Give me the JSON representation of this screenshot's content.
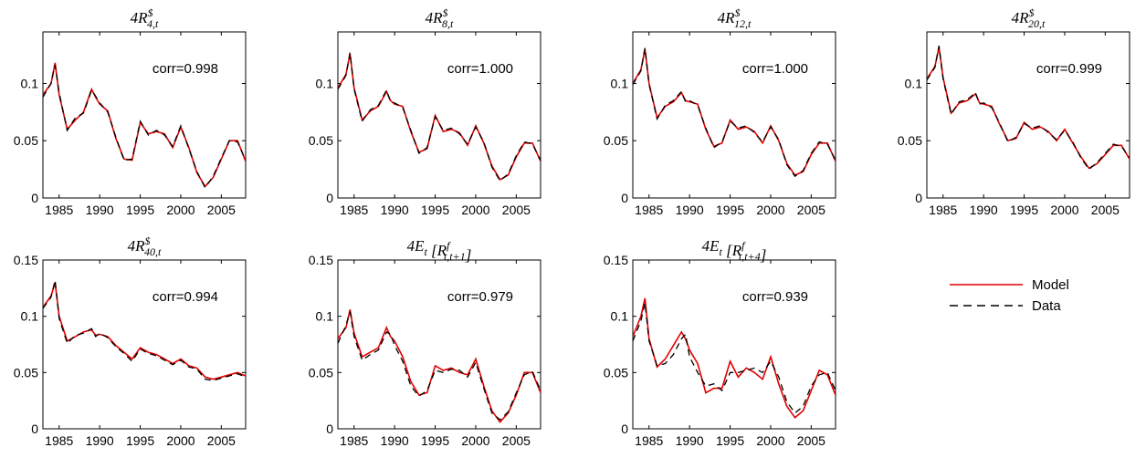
{
  "legend": {
    "items": [
      {
        "label": "Model",
        "color": "#e00000",
        "dash": "solid"
      },
      {
        "label": "Data",
        "color": "#000000",
        "dash": "dashed"
      }
    ],
    "placement": "right, second row"
  },
  "colors": {
    "model": "#e00000",
    "data": "#000000"
  },
  "chart_data": [
    {
      "type": "line",
      "title": "4R^$_{4,t}",
      "annotation": "corr=0.998",
      "xlim": [
        1983,
        2008
      ],
      "ylim": [
        0,
        0.145
      ],
      "xticks": [
        1985,
        1990,
        1995,
        2000,
        2005
      ],
      "xtick_labels": [
        "1985",
        "1990",
        "1995",
        "2000",
        "2005"
      ],
      "yticks": [
        0,
        0.05,
        0.1
      ],
      "ytick_labels": [
        "0",
        "0.05",
        "0.1"
      ],
      "x": [
        1983,
        1984,
        1984.5,
        1985,
        1986,
        1987,
        1988,
        1989,
        1989.5,
        1990,
        1991,
        1992,
        1993,
        1994,
        1995,
        1996,
        1997,
        1998,
        1999,
        2000,
        2001,
        2002,
        2003,
        2004,
        2005,
        2006,
        2007,
        2008
      ],
      "series": [
        {
          "name": "Model",
          "values": [
            0.09,
            0.1,
            0.118,
            0.09,
            0.06,
            0.068,
            0.075,
            0.095,
            0.088,
            0.082,
            0.076,
            0.052,
            0.034,
            0.033,
            0.066,
            0.056,
            0.058,
            0.056,
            0.044,
            0.062,
            0.044,
            0.022,
            0.01,
            0.018,
            0.034,
            0.05,
            0.05,
            0.032
          ]
        },
        {
          "name": "Data",
          "values": [
            0.088,
            0.1,
            0.116,
            0.092,
            0.059,
            0.07,
            0.074,
            0.094,
            0.089,
            0.083,
            0.075,
            0.053,
            0.033,
            0.034,
            0.067,
            0.055,
            0.059,
            0.055,
            0.045,
            0.063,
            0.043,
            0.023,
            0.009,
            0.019,
            0.035,
            0.05,
            0.049,
            0.033
          ]
        }
      ]
    },
    {
      "type": "line",
      "title": "4R^$_{8,t}",
      "annotation": "corr=1.000",
      "xlim": [
        1983,
        2008
      ],
      "ylim": [
        0,
        0.145
      ],
      "xticks": [
        1985,
        1990,
        1995,
        2000,
        2005
      ],
      "xtick_labels": [
        "1985",
        "1990",
        "1995",
        "2000",
        "2005"
      ],
      "yticks": [
        0,
        0.05,
        0.1
      ],
      "ytick_labels": [
        "0",
        "0.05",
        "0.1"
      ],
      "x": [
        1983,
        1984,
        1984.5,
        1985,
        1986,
        1987,
        1988,
        1989,
        1989.5,
        1990,
        1991,
        1992,
        1993,
        1994,
        1995,
        1996,
        1997,
        1998,
        1999,
        2000,
        2001,
        2002,
        2003,
        2004,
        2005,
        2006,
        2007,
        2008
      ],
      "series": [
        {
          "name": "Model",
          "values": [
            0.096,
            0.108,
            0.126,
            0.096,
            0.068,
            0.076,
            0.08,
            0.093,
            0.085,
            0.082,
            0.08,
            0.058,
            0.04,
            0.043,
            0.072,
            0.058,
            0.06,
            0.057,
            0.046,
            0.063,
            0.048,
            0.028,
            0.016,
            0.02,
            0.036,
            0.048,
            0.048,
            0.032
          ]
        },
        {
          "name": "Data",
          "values": [
            0.095,
            0.107,
            0.127,
            0.095,
            0.067,
            0.077,
            0.081,
            0.094,
            0.084,
            0.083,
            0.079,
            0.059,
            0.039,
            0.044,
            0.071,
            0.059,
            0.061,
            0.056,
            0.047,
            0.062,
            0.049,
            0.027,
            0.015,
            0.021,
            0.037,
            0.049,
            0.047,
            0.033
          ]
        }
      ]
    },
    {
      "type": "line",
      "title": "4R^$_{12,t}",
      "annotation": "corr=1.000",
      "xlim": [
        1983,
        2008
      ],
      "ylim": [
        0,
        0.145
      ],
      "xticks": [
        1985,
        1990,
        1995,
        2000,
        2005
      ],
      "xtick_labels": [
        "1985",
        "1990",
        "1995",
        "2000",
        "2005"
      ],
      "yticks": [
        0,
        0.05,
        0.1
      ],
      "ytick_labels": [
        "0",
        "0.05",
        "0.1"
      ],
      "x": [
        1983,
        1984,
        1984.5,
        1985,
        1986,
        1987,
        1988,
        1989,
        1989.5,
        1990,
        1991,
        1992,
        1993,
        1994,
        1995,
        1996,
        1997,
        1998,
        1999,
        2000,
        2001,
        2002,
        2003,
        2004,
        2005,
        2006,
        2007,
        2008
      ],
      "series": [
        {
          "name": "Model",
          "values": [
            0.1,
            0.112,
            0.13,
            0.1,
            0.07,
            0.08,
            0.084,
            0.092,
            0.085,
            0.084,
            0.082,
            0.06,
            0.045,
            0.048,
            0.068,
            0.06,
            0.062,
            0.058,
            0.048,
            0.063,
            0.05,
            0.03,
            0.02,
            0.023,
            0.038,
            0.048,
            0.048,
            0.032
          ]
        },
        {
          "name": "Data",
          "values": [
            0.099,
            0.111,
            0.131,
            0.099,
            0.069,
            0.081,
            0.085,
            0.093,
            0.084,
            0.085,
            0.081,
            0.061,
            0.044,
            0.049,
            0.067,
            0.061,
            0.063,
            0.057,
            0.049,
            0.062,
            0.051,
            0.029,
            0.019,
            0.024,
            0.039,
            0.049,
            0.047,
            0.033
          ]
        }
      ]
    },
    {
      "type": "line",
      "title": "4R^$_{20,t}",
      "annotation": "corr=0.999",
      "xlim": [
        1983,
        2008
      ],
      "ylim": [
        0,
        0.145
      ],
      "xticks": [
        1985,
        1990,
        1995,
        2000,
        2005
      ],
      "xtick_labels": [
        "1985",
        "1990",
        "1995",
        "2000",
        "2005"
      ],
      "yticks": [
        0,
        0.05,
        0.1
      ],
      "ytick_labels": [
        "0",
        "0.05",
        "0.1"
      ],
      "x": [
        1983,
        1984,
        1984.5,
        1985,
        1986,
        1987,
        1988,
        1989,
        1989.5,
        1990,
        1991,
        1992,
        1993,
        1994,
        1995,
        1996,
        1997,
        1998,
        1999,
        2000,
        2001,
        2002,
        2003,
        2004,
        2005,
        2006,
        2007,
        2008
      ],
      "series": [
        {
          "name": "Model",
          "values": [
            0.104,
            0.115,
            0.132,
            0.105,
            0.074,
            0.083,
            0.085,
            0.091,
            0.083,
            0.082,
            0.08,
            0.064,
            0.05,
            0.052,
            0.066,
            0.06,
            0.062,
            0.058,
            0.05,
            0.06,
            0.048,
            0.036,
            0.026,
            0.03,
            0.038,
            0.046,
            0.046,
            0.034
          ]
        },
        {
          "name": "Data",
          "values": [
            0.103,
            0.114,
            0.133,
            0.104,
            0.073,
            0.084,
            0.086,
            0.092,
            0.082,
            0.083,
            0.079,
            0.065,
            0.049,
            0.053,
            0.065,
            0.061,
            0.063,
            0.057,
            0.051,
            0.059,
            0.049,
            0.035,
            0.025,
            0.031,
            0.039,
            0.047,
            0.045,
            0.035
          ]
        }
      ]
    },
    {
      "type": "line",
      "title": "4R^$_{40,t}",
      "annotation": "corr=0.994",
      "xlim": [
        1983,
        2008
      ],
      "ylim": [
        0,
        0.15
      ],
      "xticks": [
        1985,
        1990,
        1995,
        2000,
        2005
      ],
      "xtick_labels": [
        "1985",
        "1990",
        "1995",
        "2000",
        "2005"
      ],
      "yticks": [
        0,
        0.05,
        0.1,
        0.15
      ],
      "ytick_labels": [
        "0",
        "0.05",
        "0.1",
        "0.15"
      ],
      "x": [
        1983,
        1984,
        1984.5,
        1985,
        1986,
        1987,
        1988,
        1989,
        1989.5,
        1990,
        1991,
        1992,
        1993,
        1994,
        1995,
        1996,
        1997,
        1998,
        1999,
        2000,
        2001,
        2002,
        2003,
        2004,
        2005,
        2006,
        2007,
        2008
      ],
      "series": [
        {
          "name": "Model",
          "values": [
            0.108,
            0.118,
            0.13,
            0.1,
            0.078,
            0.082,
            0.086,
            0.088,
            0.083,
            0.084,
            0.082,
            0.074,
            0.068,
            0.062,
            0.072,
            0.068,
            0.066,
            0.062,
            0.058,
            0.062,
            0.056,
            0.054,
            0.046,
            0.044,
            0.046,
            0.048,
            0.05,
            0.047
          ]
        },
        {
          "name": "Data",
          "values": [
            0.107,
            0.117,
            0.132,
            0.098,
            0.076,
            0.083,
            0.085,
            0.089,
            0.082,
            0.085,
            0.081,
            0.073,
            0.067,
            0.06,
            0.071,
            0.067,
            0.065,
            0.061,
            0.057,
            0.061,
            0.055,
            0.053,
            0.044,
            0.043,
            0.045,
            0.047,
            0.049,
            0.046
          ]
        }
      ]
    },
    {
      "type": "line",
      "title": "4E_t [R^f_{t,t+1}]",
      "annotation": "corr=0.979",
      "xlim": [
        1983,
        2008
      ],
      "ylim": [
        0,
        0.15
      ],
      "xticks": [
        1985,
        1990,
        1995,
        2000,
        2005
      ],
      "xtick_labels": [
        "1985",
        "1990",
        "1995",
        "2000",
        "2005"
      ],
      "yticks": [
        0,
        0.05,
        0.1,
        0.15
      ],
      "ytick_labels": [
        "0",
        "0.05",
        "0.1",
        "0.15"
      ],
      "x": [
        1983,
        1984,
        1984.5,
        1985,
        1986,
        1987,
        1988,
        1989,
        1989.5,
        1990,
        1991,
        1992,
        1993,
        1994,
        1995,
        1996,
        1997,
        1998,
        1999,
        2000,
        2001,
        2002,
        2003,
        2004,
        2005,
        2006,
        2007,
        2008
      ],
      "series": [
        {
          "name": "Model",
          "values": [
            0.08,
            0.09,
            0.106,
            0.085,
            0.064,
            0.068,
            0.072,
            0.09,
            0.082,
            0.078,
            0.064,
            0.042,
            0.03,
            0.032,
            0.056,
            0.052,
            0.054,
            0.05,
            0.048,
            0.062,
            0.038,
            0.016,
            0.006,
            0.014,
            0.03,
            0.05,
            0.05,
            0.032
          ]
        },
        {
          "name": "Data",
          "values": [
            0.076,
            0.092,
            0.104,
            0.082,
            0.061,
            0.066,
            0.07,
            0.086,
            0.084,
            0.074,
            0.06,
            0.038,
            0.029,
            0.034,
            0.052,
            0.05,
            0.053,
            0.052,
            0.046,
            0.059,
            0.036,
            0.014,
            0.008,
            0.015,
            0.032,
            0.048,
            0.051,
            0.034
          ]
        }
      ]
    },
    {
      "type": "line",
      "title": "4E_t [R^f_{t,t+4}]",
      "annotation": "corr=0.939",
      "xlim": [
        1983,
        2008
      ],
      "ylim": [
        0,
        0.15
      ],
      "xticks": [
        1985,
        1990,
        1995,
        2000,
        2005
      ],
      "xtick_labels": [
        "1985",
        "1990",
        "1995",
        "2000",
        "2005"
      ],
      "yticks": [
        0,
        0.05,
        0.1,
        0.15
      ],
      "ytick_labels": [
        "0",
        "0.05",
        "0.1",
        "0.15"
      ],
      "x": [
        1983,
        1984,
        1984.5,
        1985,
        1986,
        1987,
        1988,
        1989,
        1989.5,
        1990,
        1991,
        1992,
        1993,
        1994,
        1995,
        1996,
        1997,
        1998,
        1999,
        2000,
        2001,
        2002,
        2003,
        2004,
        2005,
        2006,
        2007,
        2008
      ],
      "series": [
        {
          "name": "Model",
          "values": [
            0.082,
            0.1,
            0.116,
            0.08,
            0.055,
            0.062,
            0.074,
            0.086,
            0.08,
            0.07,
            0.058,
            0.032,
            0.036,
            0.036,
            0.06,
            0.046,
            0.054,
            0.05,
            0.044,
            0.064,
            0.04,
            0.02,
            0.01,
            0.016,
            0.034,
            0.052,
            0.048,
            0.03
          ]
        },
        {
          "name": "Data",
          "values": [
            0.078,
            0.096,
            0.112,
            0.078,
            0.056,
            0.058,
            0.066,
            0.08,
            0.084,
            0.064,
            0.05,
            0.038,
            0.04,
            0.034,
            0.05,
            0.05,
            0.052,
            0.054,
            0.05,
            0.06,
            0.046,
            0.024,
            0.014,
            0.02,
            0.038,
            0.048,
            0.05,
            0.034
          ]
        }
      ]
    }
  ]
}
